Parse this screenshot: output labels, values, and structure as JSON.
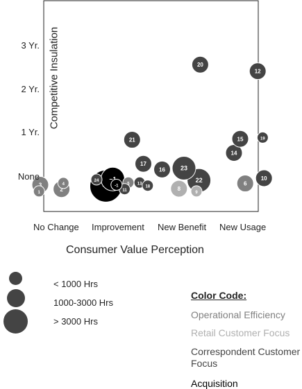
{
  "chart_data": {
    "type": "bubble",
    "xlabel": "Consumer Value Perception",
    "ylabel": "Competitive Insulation",
    "x_categories": [
      "No Change",
      "Improvement",
      "New Benefit",
      "New Usage"
    ],
    "y_categories": [
      "None",
      "1 Yr.",
      "2 Yr.",
      "3 Yr."
    ],
    "x_range": [
      -0.4,
      3.35
    ],
    "y_range": [
      -0.35,
      3.6
    ],
    "size_legend": [
      {
        "label": "< 1000 Hrs",
        "size": "small"
      },
      {
        "label": "1000-3000 Hrs",
        "size": "medium"
      },
      {
        "label": "> 3000 Hrs",
        "size": "large"
      }
    ],
    "color_code": {
      "title": "Color Code:",
      "categories": [
        {
          "label": "Operational Efficiency",
          "color": "#808080"
        },
        {
          "label": "Retail Customer Focus",
          "color": "#b0b0b0"
        },
        {
          "label": "Correspondent Customer Focus",
          "color": "#444444"
        },
        {
          "label": "Acquisition",
          "color": "#000000"
        }
      ]
    },
    "points": [
      {
        "id": "1",
        "x": -0.32,
        "y": -0.3,
        "size": "small",
        "category": "Operational Efficiency"
      },
      {
        "id": "2",
        "x": 0.04,
        "y": -0.25,
        "size": "medium",
        "category": "Operational Efficiency"
      },
      {
        "id": "3",
        "x": -0.3,
        "y": -0.15,
        "size": "medium",
        "category": "Operational Efficiency"
      },
      {
        "id": "4",
        "x": 0.07,
        "y": -0.11,
        "size": "small",
        "category": "Operational Efficiency"
      },
      {
        "id": "5",
        "x": 1.11,
        "y": -0.1,
        "size": "small",
        "category": "Operational Efficiency"
      },
      {
        "id": "6",
        "x": 2.98,
        "y": -0.12,
        "size": "medium",
        "category": "Operational Efficiency"
      },
      {
        "id": "8",
        "x": 1.92,
        "y": -0.24,
        "size": "medium",
        "category": "Retail Customer Focus"
      },
      {
        "id": "9",
        "x": 2.2,
        "y": -0.3,
        "size": "small",
        "category": "Retail Customer Focus"
      },
      {
        "id": "10",
        "x": 3.28,
        "y": 0.0,
        "size": "medium",
        "category": "Correspondent Customer Focus"
      },
      {
        "id": "11",
        "x": 1.05,
        "y": -0.25,
        "size": "small",
        "category": "Correspondent Customer Focus"
      },
      {
        "id": "12",
        "x": 3.18,
        "y": 2.45,
        "size": "medium",
        "category": "Correspondent Customer Focus"
      },
      {
        "id": "13",
        "x": 1.29,
        "y": -0.1,
        "size": "small",
        "category": "Correspondent Customer Focus"
      },
      {
        "id": "14",
        "x": 2.8,
        "y": 0.58,
        "size": "medium",
        "category": "Correspondent Customer Focus"
      },
      {
        "id": "15",
        "x": 2.9,
        "y": 0.9,
        "size": "medium",
        "category": "Correspondent Customer Focus"
      },
      {
        "id": "16",
        "x": 1.65,
        "y": 0.2,
        "size": "medium",
        "category": "Correspondent Customer Focus"
      },
      {
        "id": "17",
        "x": 1.35,
        "y": 0.33,
        "size": "medium",
        "category": "Correspondent Customer Focus"
      },
      {
        "id": "18",
        "x": 1.42,
        "y": -0.17,
        "size": "small",
        "category": "Correspondent Customer Focus"
      },
      {
        "id": "19",
        "x": 3.26,
        "y": 0.93,
        "size": "small",
        "category": "Correspondent Customer Focus"
      },
      {
        "id": "20",
        "x": 2.26,
        "y": 2.6,
        "size": "medium",
        "category": "Correspondent Customer Focus"
      },
      {
        "id": "21",
        "x": 1.17,
        "y": 0.88,
        "size": "medium",
        "category": "Correspondent Customer Focus"
      },
      {
        "id": "22",
        "x": 2.24,
        "y": -0.05,
        "size": "large",
        "category": "Correspondent Customer Focus"
      },
      {
        "id": "23",
        "x": 2.0,
        "y": 0.23,
        "size": "large",
        "category": "Correspondent Customer Focus"
      },
      {
        "id": "24",
        "x": 0.6,
        "y": -0.03,
        "size": "small",
        "category": "Correspondent Customer Focus"
      },
      {
        "id": "−1",
        "x": 0.86,
        "y": -0.02,
        "size": "large",
        "category": "Acquisition"
      },
      {
        "id": "-1",
        "x": 0.92,
        "y": -0.15,
        "size": "small",
        "category": "Acquisition"
      },
      {
        "id": "−2",
        "x": 0.75,
        "y": -0.18,
        "size": "xlarge",
        "category": "Acquisition"
      }
    ]
  }
}
